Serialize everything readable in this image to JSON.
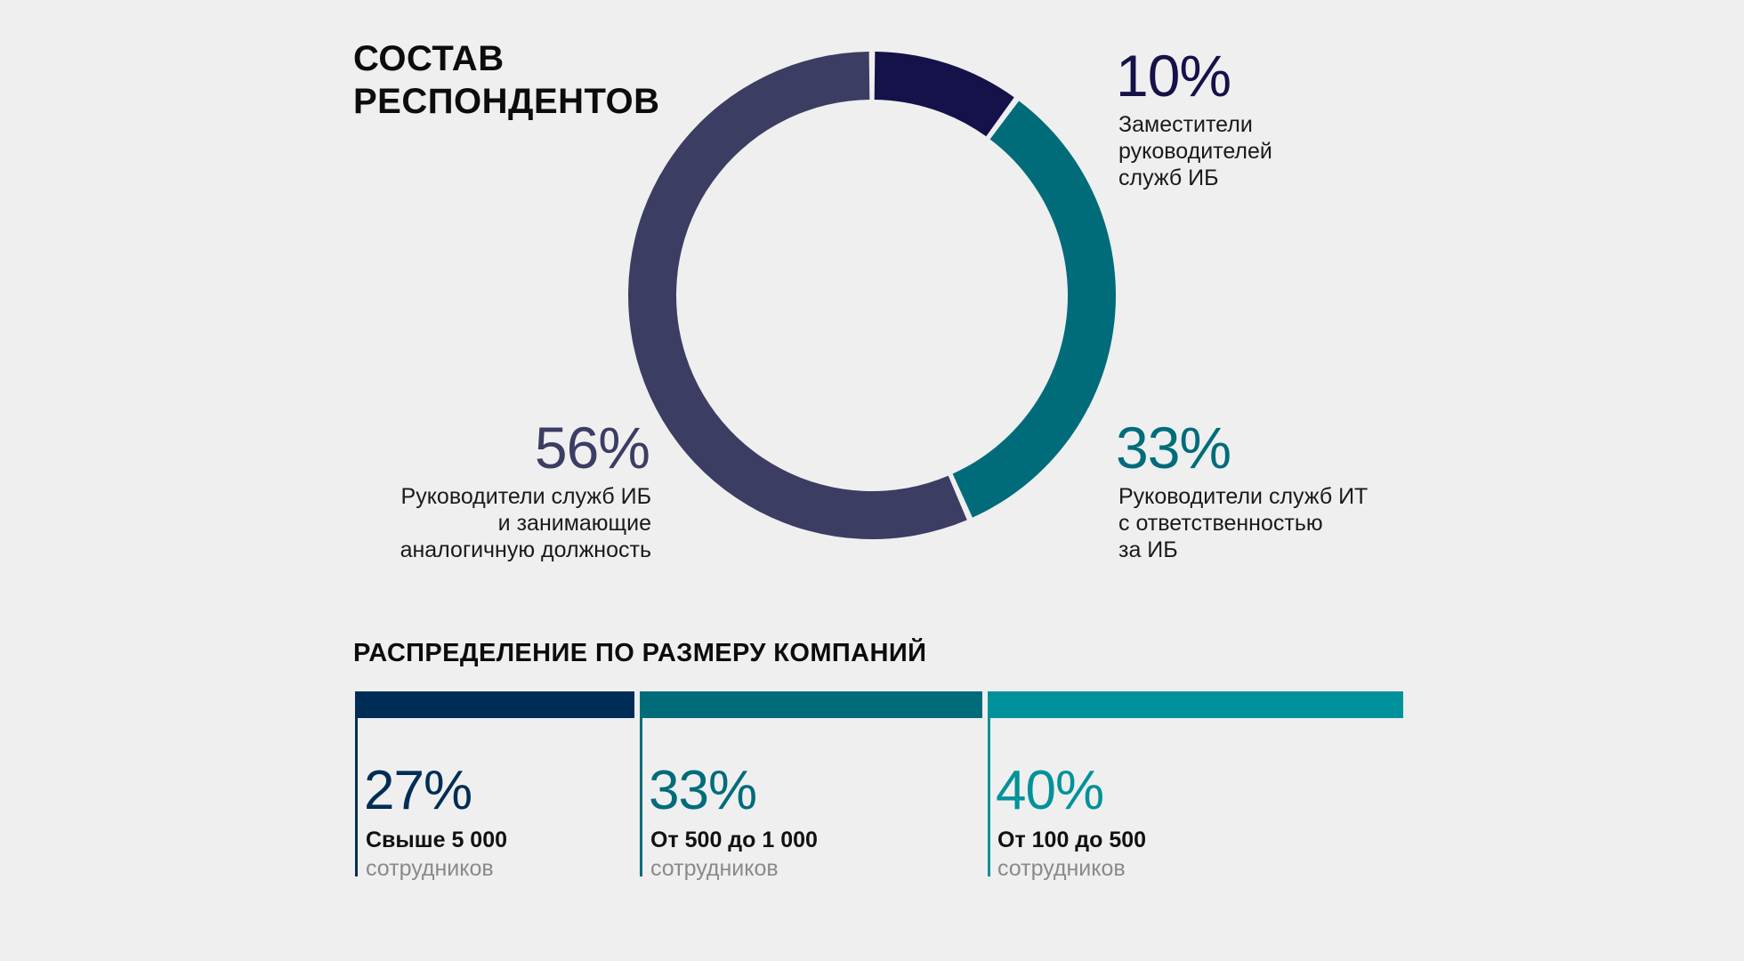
{
  "title": {
    "line1": "СОСТАВ",
    "line2": "РЕСПОНДЕНТОВ"
  },
  "chart_data": [
    {
      "type": "pie",
      "categories": [
        "Заместители руководителей служб ИБ",
        "Руководители служб ИТ с ответственностью за ИБ",
        "Руководители служб ИБ и занимающие аналогичную должность"
      ],
      "values": [
        10,
        33,
        56
      ],
      "value_labels": [
        "10%",
        "33%",
        "56%"
      ],
      "colors": [
        "#141248",
        "#006c7a",
        "#3c3d63"
      ]
    },
    {
      "type": "bar",
      "title": "РАСПРЕДЕЛЕНИЕ ПО РАЗМЕРУ КОМПАНИЙ",
      "categories": [
        "Свыше 5 000",
        "От 500 до 1 000",
        "От 100 до 500"
      ],
      "values": [
        27,
        33,
        40
      ],
      "value_labels": [
        "27%",
        "33%",
        "40%"
      ],
      "unit": "сотрудников",
      "colors": [
        "#002d55",
        "#006c7a",
        "#00929a"
      ]
    }
  ],
  "labels": {
    "slice_deputies": {
      "line1": "Заместители",
      "line2": "руководителей",
      "line3": "служб ИБ"
    },
    "slice_it_heads": {
      "line1": "Руководители служб ИТ",
      "line2": "с ответственностью",
      "line3": "за ИБ"
    },
    "slice_ib_heads": {
      "line1": "Руководители служб ИБ",
      "line2": "и занимающие",
      "line3": "аналогичную должность"
    }
  }
}
